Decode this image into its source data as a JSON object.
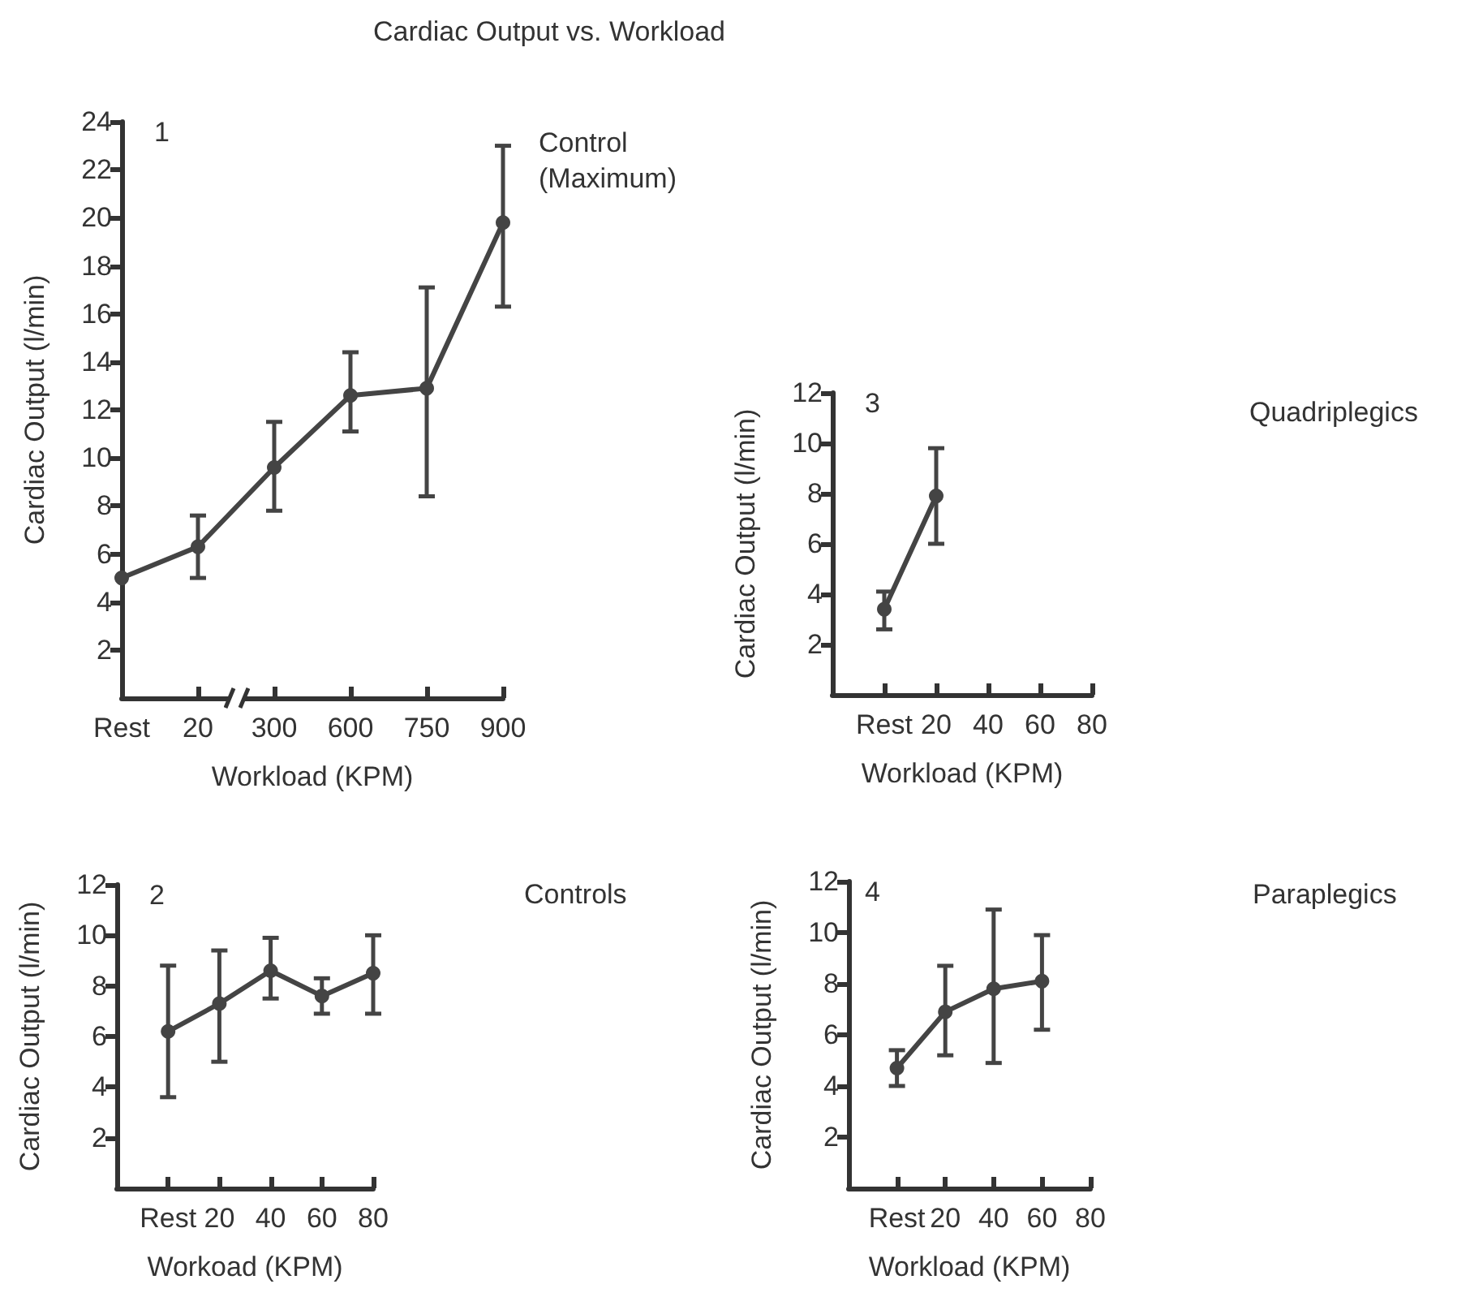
{
  "chart_data": [
    {
      "type": "line",
      "title": "Cardiac Output vs. Workload",
      "xlabel": "Workload (KPM)",
      "ylabel": "Cardiac Output (l/min)",
      "categories": [
        "Rest",
        "20",
        "300",
        "600",
        "750",
        "900"
      ],
      "series": [
        {
          "color": "#444444",
          "values": [
            5.0,
            6.3,
            9.6,
            12.6,
            12.9,
            19.8
          ],
          "errors": [
            null,
            [
              5.0,
              7.6
            ],
            [
              7.8,
              11.5
            ],
            [
              11.1,
              14.4
            ],
            [
              8.4,
              17.1
            ],
            [
              16.3,
              23.0
            ]
          ]
        }
      ],
      "ylim": [
        0,
        24
      ],
      "yticks": [
        2,
        4,
        6,
        8,
        10,
        12,
        14,
        16,
        18,
        20,
        22,
        24
      ],
      "marker": "circle",
      "line_style": "solid",
      "annotations": [
        "1",
        "Control (Maximum)"
      ]
    },
    {
      "type": "line",
      "xlabel": "Workload (KPM)",
      "ylabel": "Cardiac Output (l/min)",
      "categories": [
        "Rest",
        "20",
        "40",
        "60",
        "80"
      ],
      "series": [
        {
          "color": "#444444",
          "values": [
            3.4,
            7.9,
            null,
            null,
            null
          ],
          "errors": [
            [
              2.6,
              4.1
            ],
            [
              6.0,
              9.8
            ],
            null,
            null,
            null
          ]
        }
      ],
      "ylim": [
        0,
        12
      ],
      "yticks": [
        2,
        4,
        6,
        8,
        10,
        12
      ],
      "marker": "circle",
      "line_style": "solid",
      "annotations": [
        "3",
        "Quadriplegics"
      ]
    },
    {
      "type": "line",
      "xlabel": "Workoad (KPM)",
      "ylabel": "Cardiac Output (l/min)",
      "categories": [
        "Rest",
        "20",
        "40",
        "60",
        "80"
      ],
      "series": [
        {
          "color": "#444444",
          "values": [
            6.2,
            7.3,
            8.6,
            7.6,
            8.5
          ],
          "errors": [
            [
              3.6,
              8.8
            ],
            [
              5.0,
              9.4
            ],
            [
              7.5,
              9.9
            ],
            [
              6.9,
              8.3
            ],
            [
              6.9,
              10.0
            ]
          ]
        }
      ],
      "ylim": [
        0,
        12
      ],
      "yticks": [
        2,
        4,
        6,
        8,
        10,
        12
      ],
      "marker": "circle",
      "line_style": "solid",
      "annotations": [
        "2",
        "Controls"
      ]
    },
    {
      "type": "line",
      "xlabel": "Workload (KPM)",
      "ylabel": "Cardiac Output (l/min)",
      "categories": [
        "Rest",
        "20",
        "40",
        "60",
        "80"
      ],
      "series": [
        {
          "color": "#444444",
          "values": [
            4.7,
            6.9,
            7.8,
            8.1,
            null
          ],
          "errors": [
            [
              4.0,
              5.4
            ],
            [
              5.2,
              8.7
            ],
            [
              4.9,
              10.9
            ],
            [
              6.2,
              9.9
            ],
            null
          ]
        }
      ],
      "ylim": [
        0,
        12
      ],
      "yticks": [
        2,
        4,
        6,
        8,
        10,
        12
      ],
      "marker": "circle",
      "line_style": "solid",
      "annotations": [
        "4",
        "Paraplegics"
      ]
    }
  ]
}
